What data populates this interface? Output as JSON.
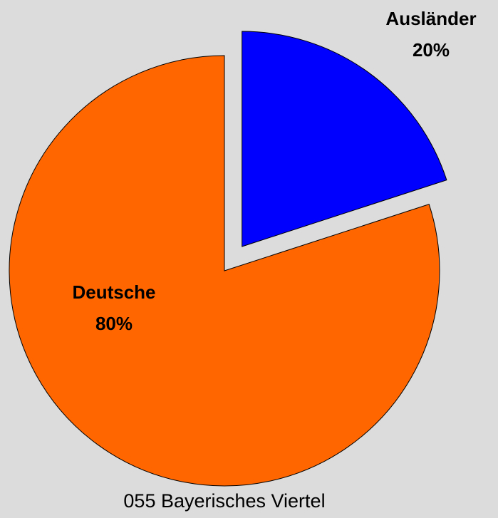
{
  "chart_data": {
    "type": "pie",
    "title": "055 Bayerisches Viertel",
    "categories": [
      "Ausländer",
      "Deutsche"
    ],
    "values": [
      20,
      80
    ],
    "value_labels": [
      "20%",
      "80%"
    ],
    "colors": [
      "#0000ff",
      "#ff6600"
    ],
    "explode": [
      true,
      false
    ]
  }
}
